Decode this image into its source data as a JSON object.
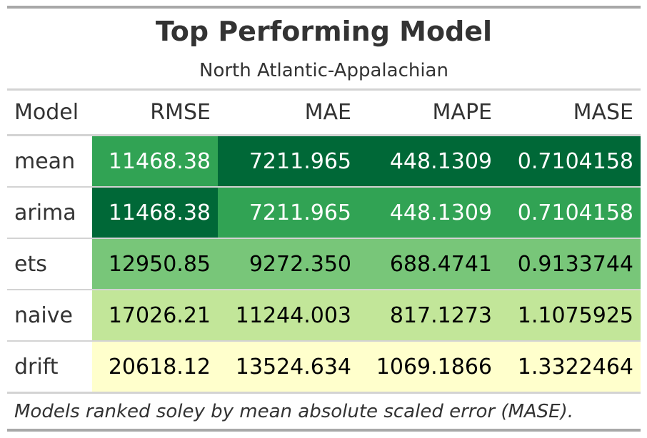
{
  "table": {
    "title": "Top Performing Model",
    "subtitle": "North Atlantic-Appalachian",
    "columns": [
      "Model",
      "RMSE",
      "MAE",
      "MAPE",
      "MASE"
    ],
    "rows": [
      {
        "model": "mean",
        "cells": [
          "11468.38",
          "7211.965",
          "448.1309",
          "0.7104158"
        ],
        "colors": [
          "#31a354",
          "#006837",
          "#006837",
          "#006837"
        ],
        "text_colors": [
          "#ffffff",
          "#ffffff",
          "#ffffff",
          "#ffffff"
        ]
      },
      {
        "model": "arima",
        "cells": [
          "11468.38",
          "7211.965",
          "448.1309",
          "0.7104158"
        ],
        "colors": [
          "#006837",
          "#31a354",
          "#31a354",
          "#31a354"
        ],
        "text_colors": [
          "#ffffff",
          "#ffffff",
          "#ffffff",
          "#ffffff"
        ]
      },
      {
        "model": "ets",
        "cells": [
          "12950.85",
          "9272.350",
          "688.4741",
          "0.9133744"
        ],
        "colors": [
          "#78c679",
          "#78c679",
          "#78c679",
          "#78c679"
        ],
        "text_colors": [
          "#000000",
          "#000000",
          "#000000",
          "#000000"
        ]
      },
      {
        "model": "naive",
        "cells": [
          "17026.21",
          "11244.003",
          "817.1273",
          "1.1075925"
        ],
        "colors": [
          "#c2e699",
          "#c2e699",
          "#c2e699",
          "#c2e699"
        ],
        "text_colors": [
          "#000000",
          "#000000",
          "#000000",
          "#000000"
        ]
      },
      {
        "model": "drift",
        "cells": [
          "20618.12",
          "13524.634",
          "1069.1866",
          "1.3322464"
        ],
        "colors": [
          "#ffffcc",
          "#ffffcc",
          "#ffffcc",
          "#ffffcc"
        ],
        "text_colors": [
          "#000000",
          "#000000",
          "#000000",
          "#000000"
        ]
      }
    ],
    "footnote": "Models ranked soley by mean absolute scaled error (MASE)."
  },
  "chart_data": {
    "type": "table",
    "title": "Top Performing Model",
    "subtitle": "North Atlantic-Appalachian",
    "columns": [
      "Model",
      "RMSE",
      "MAE",
      "MAPE",
      "MASE"
    ],
    "rows": [
      [
        "mean",
        11468.38,
        7211.965,
        448.1309,
        0.7104158
      ],
      [
        "arima",
        11468.38,
        7211.965,
        448.1309,
        0.7104158
      ],
      [
        "ets",
        12950.85,
        9272.35,
        688.4741,
        0.9133744
      ],
      [
        "naive",
        17026.21,
        11244.003,
        817.1273,
        1.1075925
      ],
      [
        "drift",
        20618.12,
        13524.634,
        1069.1866,
        1.3322464
      ]
    ]
  }
}
